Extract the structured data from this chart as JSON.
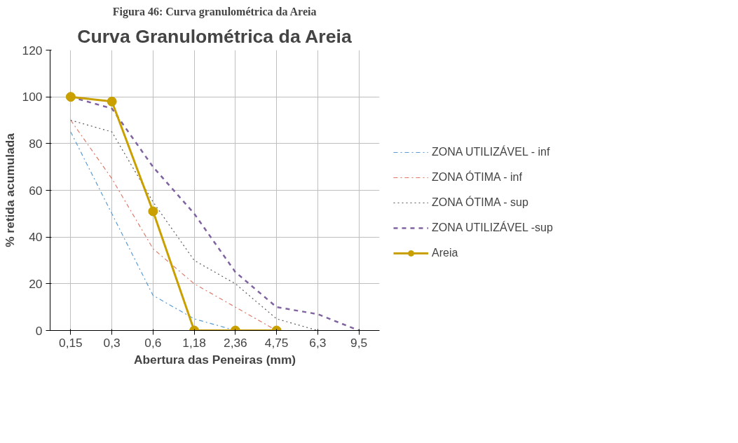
{
  "chart_data": {
    "type": "line",
    "title": "Curva Granulométrica da Areia",
    "annotations": [
      "Figura 46: Curva granulométrica da Areia"
    ],
    "xlabel": "Abertura das Peneiras (mm)",
    "ylabel": "% retida acumulada",
    "categories": [
      "0,15",
      "0,3",
      "0,6",
      "1,18",
      "2,36",
      "4,75",
      "6,3",
      "9,5"
    ],
    "ylim": [
      0,
      120
    ],
    "yticks": [
      0,
      20,
      40,
      60,
      80,
      100,
      120
    ],
    "grid": true,
    "legend": "right",
    "series": [
      {
        "name": "ZONA UTILIZÁVEL - inf",
        "color": "#5b9bd5",
        "line_style": "dashdot",
        "marker": "none",
        "values": [
          85,
          50,
          15,
          5,
          0,
          0,
          null,
          null
        ]
      },
      {
        "name": "ZONA ÓTIMA - inf",
        "color": "#e07b6a",
        "line_style": "dashdot",
        "marker": "none",
        "values": [
          90,
          65,
          35,
          20,
          10,
          0,
          0,
          0
        ]
      },
      {
        "name": "ZONA ÓTIMA - sup",
        "color": "#595959",
        "line_style": "dotted",
        "marker": "none",
        "values": [
          90,
          85,
          55,
          30,
          20,
          5,
          0,
          0
        ]
      },
      {
        "name": "ZONA UTILIZÁVEL -sup",
        "color": "#8064a2",
        "line_style": "dashed",
        "marker": "none",
        "values": [
          100,
          95,
          70,
          50,
          25,
          10,
          7,
          0
        ]
      },
      {
        "name": "Areia",
        "color": "#c9a000",
        "line_style": "solid",
        "marker": "circle",
        "values": [
          100,
          98,
          51,
          0,
          0,
          0,
          null,
          null
        ]
      }
    ]
  }
}
